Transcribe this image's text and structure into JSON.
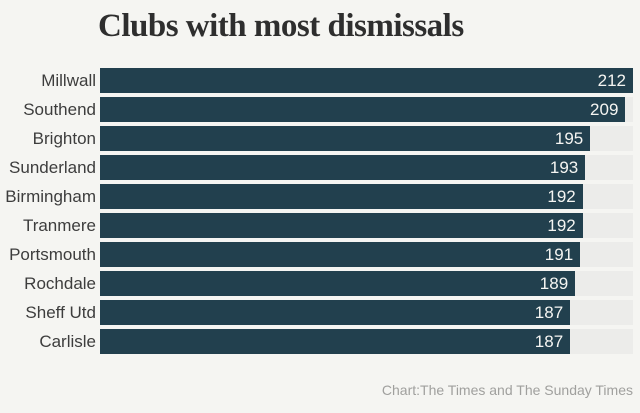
{
  "chart_data": {
    "type": "bar",
    "orientation": "horizontal",
    "title": "Clubs with most dismissals",
    "categories": [
      "Millwall",
      "Southend",
      "Brighton",
      "Sunderland",
      "Birmingham",
      "Tranmere",
      "Portsmouth",
      "Rochdale",
      "Sheff Utd",
      "Carlisle"
    ],
    "values": [
      212,
      209,
      195,
      193,
      192,
      192,
      191,
      189,
      187,
      187
    ],
    "xlim": [
      0,
      212
    ],
    "value_labels_inside_bars": true,
    "background_row_bands": true,
    "legend": "none",
    "grid": false
  },
  "footer": {
    "source_label": "Chart:The Times and The Sunday Times"
  },
  "colors": {
    "background": "#f5f5f2",
    "bar": "#22404e",
    "row_band": "#ececea",
    "title_text": "#2e2e2e",
    "category_text": "#3d3d3d",
    "value_text": "#f5f5f2",
    "footer_text": "#a0a09e"
  }
}
